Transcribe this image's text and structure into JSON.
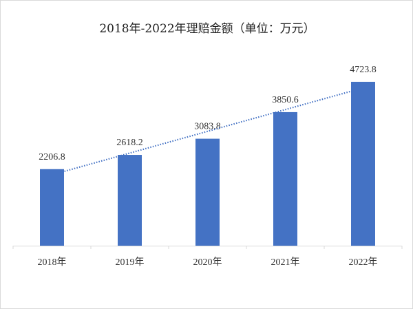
{
  "chart_data": {
    "type": "bar",
    "title": "2018年-2022年理赔金额（单位：万元）",
    "categories": [
      "2018年",
      "2019年",
      "2020年",
      "2021年",
      "2022年"
    ],
    "values": [
      2206.8,
      2618.2,
      3083.8,
      3850.6,
      4723.8
    ],
    "data_labels": [
      "2206.8",
      "2618.2",
      "3083.8",
      "3850.6",
      "4723.8"
    ],
    "ylim": [
      0,
      5000
    ],
    "grid": false,
    "legend": "none",
    "trendline": {
      "type": "linear",
      "style": "dotted"
    },
    "colors": {
      "bar": "#4472c4",
      "trendline": "#4472c4",
      "axis": "#d9d9d9"
    }
  }
}
